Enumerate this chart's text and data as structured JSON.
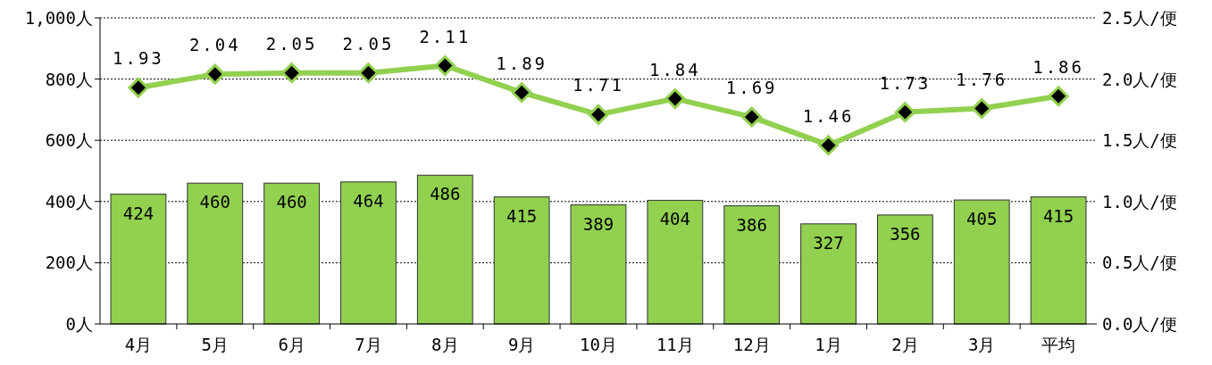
{
  "chart_data": {
    "type": "bar",
    "categories": [
      "4月",
      "5月",
      "6月",
      "7月",
      "8月",
      "9月",
      "10月",
      "11月",
      "12月",
      "1月",
      "2月",
      "3月",
      "平均"
    ],
    "series": [
      {
        "color": "#92d050",
        "values": [
          424,
          460,
          460,
          464,
          486,
          415,
          389,
          404,
          386,
          327,
          356,
          405,
          415
        ]
      },
      {
        "type": "line",
        "axis": "y2",
        "color": "#92d050",
        "marker": "diamond",
        "values": [
          1.93,
          2.04,
          2.05,
          2.05,
          2.11,
          1.89,
          1.71,
          1.84,
          1.69,
          1.46,
          1.73,
          1.76,
          1.86
        ]
      }
    ],
    "ylim": [
      0,
      1000
    ],
    "yticks": [
      {
        "value": 0,
        "label": "0人"
      },
      {
        "value": 200,
        "label": "200人"
      },
      {
        "value": 400,
        "label": "400人"
      },
      {
        "value": 600,
        "label": "600人"
      },
      {
        "value": 800,
        "label": "800人"
      },
      {
        "value": 1000,
        "label": "1,000人"
      }
    ],
    "y2lim": [
      0,
      2.5
    ],
    "y2ticks": [
      {
        "value": 0,
        "label": "0.0人/便"
      },
      {
        "value": 0.5,
        "label": "0.5人/便"
      },
      {
        "value": 1,
        "label": "1.0人/便"
      },
      {
        "value": 1.5,
        "label": "1.5人/便"
      },
      {
        "value": 2,
        "label": "2.0人/便"
      },
      {
        "value": 2.5,
        "label": "2.5人/便"
      }
    ],
    "grid": "y",
    "data_labels": true
  }
}
